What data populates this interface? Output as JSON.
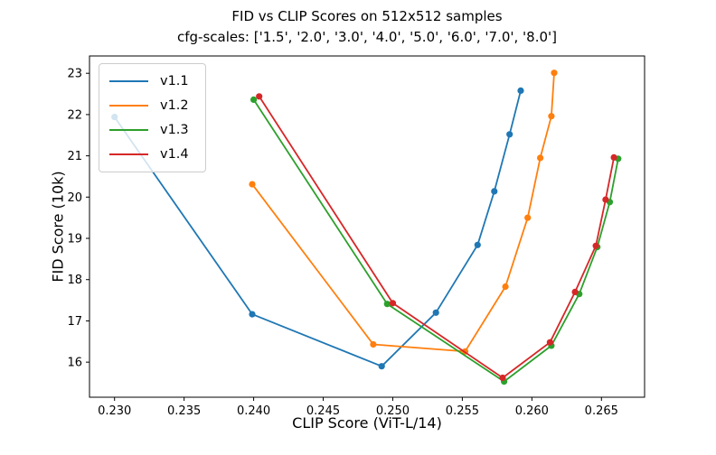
{
  "chart_data": {
    "type": "line",
    "title": "FID vs CLIP Scores on 512x512 samples",
    "subtitle": "cfg-scales: ['1.5', '2.0', '3.0', '4.0', '5.0', '6.0', '7.0', '8.0']",
    "xlabel": "CLIP Score (ViT-L/14)",
    "ylabel": "FID Score (10k)",
    "xlim": [
      0.2282,
      0.2681
    ],
    "ylim": [
      15.15,
      23.42
    ],
    "grid": false,
    "legend_position": "upper left",
    "cfg_scales": [
      "1.5",
      "2.0",
      "3.0",
      "4.0",
      "5.0",
      "6.0",
      "7.0",
      "8.0"
    ],
    "x_ticks": [
      {
        "value": 0.23,
        "label": "0.230"
      },
      {
        "value": 0.235,
        "label": "0.235"
      },
      {
        "value": 0.24,
        "label": "0.240"
      },
      {
        "value": 0.245,
        "label": "0.245"
      },
      {
        "value": 0.25,
        "label": "0.250"
      },
      {
        "value": 0.255,
        "label": "0.255"
      },
      {
        "value": 0.26,
        "label": "0.260"
      },
      {
        "value": 0.265,
        "label": "0.265"
      }
    ],
    "y_ticks": [
      {
        "value": 16,
        "label": "16"
      },
      {
        "value": 17,
        "label": "17"
      },
      {
        "value": 18,
        "label": "18"
      },
      {
        "value": 19,
        "label": "19"
      },
      {
        "value": 20,
        "label": "20"
      },
      {
        "value": 21,
        "label": "21"
      },
      {
        "value": 22,
        "label": "22"
      },
      {
        "value": 23,
        "label": "23"
      }
    ],
    "series": [
      {
        "name": "v1.1",
        "color": "#1f77b4",
        "points": [
          [
            0.23,
            21.94
          ],
          [
            0.2399,
            17.16
          ],
          [
            0.2492,
            15.9
          ],
          [
            0.2531,
            17.2
          ],
          [
            0.2561,
            18.84
          ],
          [
            0.2573,
            20.14
          ],
          [
            0.2584,
            21.52
          ],
          [
            0.2592,
            22.58
          ]
        ]
      },
      {
        "name": "v1.2",
        "color": "#ff7f0e",
        "points": [
          [
            0.2399,
            20.31
          ],
          [
            0.2486,
            16.43
          ],
          [
            0.2552,
            16.26
          ],
          [
            0.2581,
            17.83
          ],
          [
            0.2597,
            19.5
          ],
          [
            0.2606,
            20.95
          ],
          [
            0.2614,
            21.96
          ],
          [
            0.2616,
            23.01
          ]
        ]
      },
      {
        "name": "v1.3",
        "color": "#2ca02c",
        "points": [
          [
            0.24,
            22.36
          ],
          [
            0.2496,
            17.41
          ],
          [
            0.258,
            15.53
          ],
          [
            0.2614,
            16.4
          ],
          [
            0.2634,
            17.65
          ],
          [
            0.2647,
            18.79
          ],
          [
            0.2656,
            19.88
          ],
          [
            0.2662,
            20.93
          ]
        ]
      },
      {
        "name": "v1.4",
        "color": "#d62728",
        "points": [
          [
            0.2404,
            22.44
          ],
          [
            0.25,
            17.43
          ],
          [
            0.2579,
            15.62
          ],
          [
            0.2613,
            16.48
          ],
          [
            0.2631,
            17.7
          ],
          [
            0.2646,
            18.82
          ],
          [
            0.2653,
            19.94
          ],
          [
            0.2659,
            20.96
          ]
        ]
      }
    ]
  }
}
